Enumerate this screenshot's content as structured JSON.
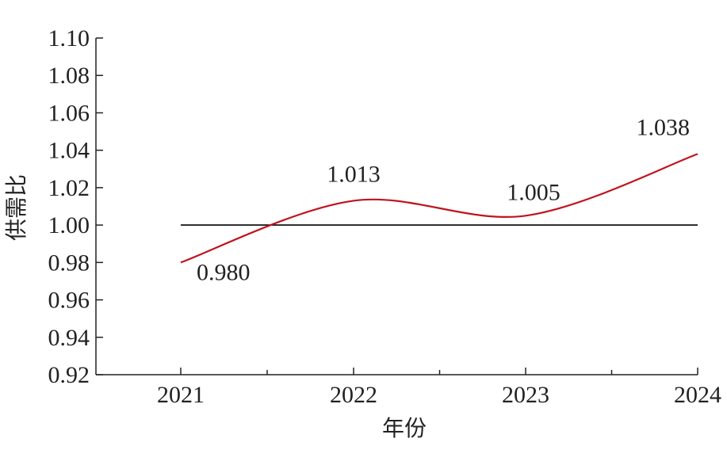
{
  "chart_data": {
    "type": "line",
    "x": [
      "2021",
      "2022",
      "2023",
      "2024"
    ],
    "series": [
      {
        "values": [
          0.98,
          1.013,
          1.005,
          1.038
        ],
        "color": "#c0141e"
      }
    ],
    "data_labels": [
      "0.980",
      "1.013",
      "1.005",
      "1.038"
    ],
    "reference_line": {
      "y": 1.0,
      "color": "#000000"
    },
    "xlabel": "年份",
    "ylabel": "供需比",
    "ylim": [
      0.92,
      1.1
    ],
    "yticks": [
      "0.92",
      "0.94",
      "0.96",
      "0.98",
      "1.00",
      "1.02",
      "1.04",
      "1.06",
      "1.08",
      "1.10"
    ],
    "grid": false
  }
}
